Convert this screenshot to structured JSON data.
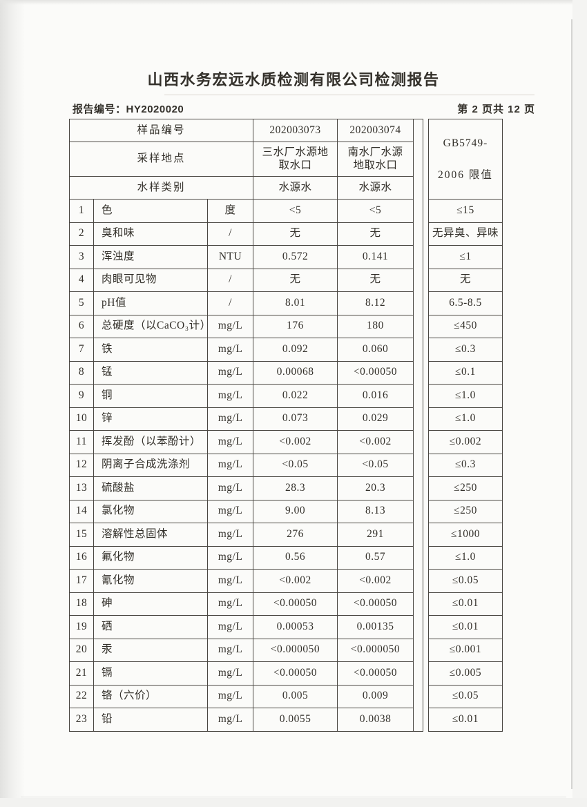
{
  "colors": {
    "paper": "#fbfbf9",
    "ink": "#33302a",
    "table_line": "#4a4742"
  },
  "header": {
    "title": "山西水务宏远水质检测有限公司检测报告",
    "report_no_label": "报告编号：",
    "report_no": "HY2020020",
    "page_indicator": "第 2 页共 12 页"
  },
  "table": {
    "meta_rows": [
      {
        "label": "样品编号",
        "v1": "202003073",
        "v2": "202003074"
      },
      {
        "label": "采样地点",
        "v1": "三水厂水源地取水口",
        "v2": "南水厂水源地取水口"
      },
      {
        "label": "水样类别",
        "v1": "水源水",
        "v2": "水源水"
      }
    ],
    "limit_header": {
      "line1": "GB5749-",
      "line2": "2006 限值"
    },
    "rows": [
      {
        "no": "1",
        "item": "色",
        "unit": "度",
        "v1": "<5",
        "v2": "<5",
        "limit": "≤15"
      },
      {
        "no": "2",
        "item": "臭和味",
        "unit": "/",
        "v1": "无",
        "v2": "无",
        "limit": "无异臭、异味"
      },
      {
        "no": "3",
        "item": "浑浊度",
        "unit": "NTU",
        "v1": "0.572",
        "v2": "0.141",
        "limit": "≤1"
      },
      {
        "no": "4",
        "item": "肉眼可见物",
        "unit": "/",
        "v1": "无",
        "v2": "无",
        "limit": "无"
      },
      {
        "no": "5",
        "item": "pH值",
        "unit": "/",
        "v1": "8.01",
        "v2": "8.12",
        "limit": "6.5-8.5"
      },
      {
        "no": "6",
        "item": "总硬度（以CaCO₃计）",
        "unit": "mg/L",
        "v1": "176",
        "v2": "180",
        "limit": "≤450"
      },
      {
        "no": "7",
        "item": "铁",
        "unit": "mg/L",
        "v1": "0.092",
        "v2": "0.060",
        "limit": "≤0.3"
      },
      {
        "no": "8",
        "item": "锰",
        "unit": "mg/L",
        "v1": "0.00068",
        "v2": "<0.00050",
        "limit": "≤0.1"
      },
      {
        "no": "9",
        "item": "铜",
        "unit": "mg/L",
        "v1": "0.022",
        "v2": "0.016",
        "limit": "≤1.0"
      },
      {
        "no": "10",
        "item": "锌",
        "unit": "mg/L",
        "v1": "0.073",
        "v2": "0.029",
        "limit": "≤1.0"
      },
      {
        "no": "11",
        "item": "挥发酚（以苯酚计）",
        "unit": "mg/L",
        "v1": "<0.002",
        "v2": "<0.002",
        "limit": "≤0.002"
      },
      {
        "no": "12",
        "item": "阴离子合成洗涤剂",
        "unit": "mg/L",
        "v1": "<0.05",
        "v2": "<0.05",
        "limit": "≤0.3"
      },
      {
        "no": "13",
        "item": "硫酸盐",
        "unit": "mg/L",
        "v1": "28.3",
        "v2": "20.3",
        "limit": "≤250"
      },
      {
        "no": "14",
        "item": "氯化物",
        "unit": "mg/L",
        "v1": "9.00",
        "v2": "8.13",
        "limit": "≤250"
      },
      {
        "no": "15",
        "item": "溶解性总固体",
        "unit": "mg/L",
        "v1": "276",
        "v2": "291",
        "limit": "≤1000"
      },
      {
        "no": "16",
        "item": "氟化物",
        "unit": "mg/L",
        "v1": "0.56",
        "v2": "0.57",
        "limit": "≤1.0"
      },
      {
        "no": "17",
        "item": "氰化物",
        "unit": "mg/L",
        "v1": "<0.002",
        "v2": "<0.002",
        "limit": "≤0.05"
      },
      {
        "no": "18",
        "item": "砷",
        "unit": "mg/L",
        "v1": "<0.00050",
        "v2": "<0.00050",
        "limit": "≤0.01"
      },
      {
        "no": "19",
        "item": "硒",
        "unit": "mg/L",
        "v1": "0.00053",
        "v2": "0.00135",
        "limit": "≤0.01"
      },
      {
        "no": "20",
        "item": "汞",
        "unit": "mg/L",
        "v1": "<0.000050",
        "v2": "<0.000050",
        "limit": "≤0.001"
      },
      {
        "no": "21",
        "item": "镉",
        "unit": "mg/L",
        "v1": "<0.00050",
        "v2": "<0.00050",
        "limit": "≤0.005"
      },
      {
        "no": "22",
        "item": "铬（六价）",
        "unit": "mg/L",
        "v1": "0.005",
        "v2": "0.009",
        "limit": "≤0.05"
      },
      {
        "no": "23",
        "item": "铅",
        "unit": "mg/L",
        "v1": "0.0055",
        "v2": "0.0038",
        "limit": "≤0.01"
      }
    ]
  }
}
